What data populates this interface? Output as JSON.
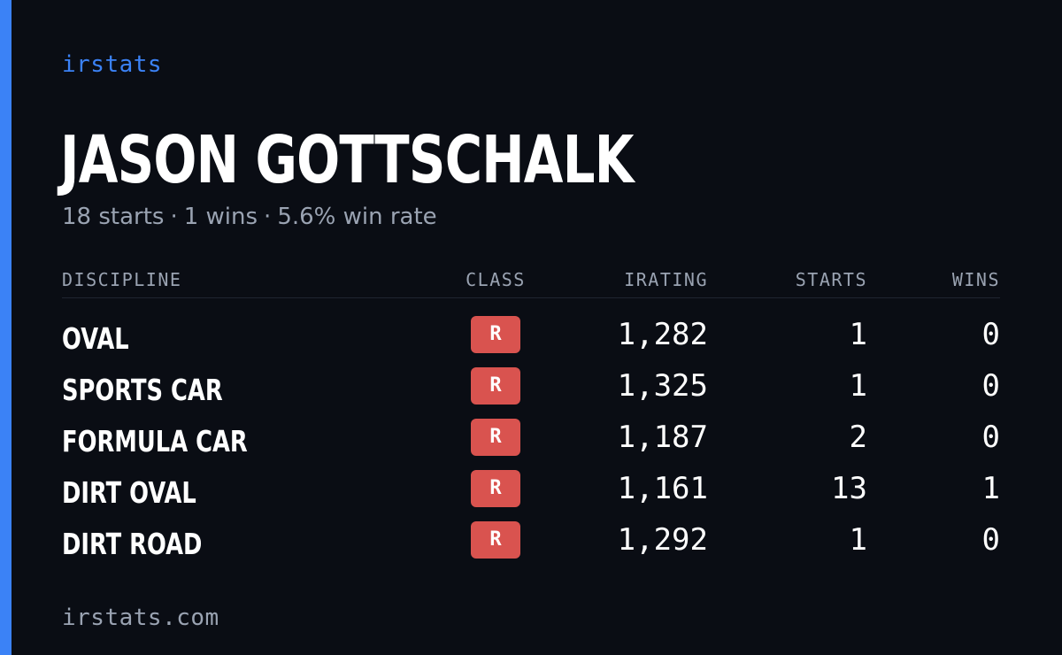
{
  "brand": "irstats",
  "player": {
    "name": "JASON GOTTSCHALK"
  },
  "summary": {
    "starts": "18 starts",
    "wins": "1 wins",
    "win_rate": "5.6% win rate",
    "separator": "·"
  },
  "table": {
    "headers": {
      "discipline": "DISCIPLINE",
      "class": "CLASS",
      "irating": "IRATING",
      "starts": "STARTS",
      "wins": "WINS"
    },
    "rows": [
      {
        "discipline": "OVAL",
        "class": "R",
        "irating": "1,282",
        "starts": "1",
        "wins": "0"
      },
      {
        "discipline": "SPORTS CAR",
        "class": "R",
        "irating": "1,325",
        "starts": "1",
        "wins": "0"
      },
      {
        "discipline": "FORMULA CAR",
        "class": "R",
        "irating": "1,187",
        "starts": "2",
        "wins": "0"
      },
      {
        "discipline": "DIRT OVAL",
        "class": "R",
        "irating": "1,161",
        "starts": "13",
        "wins": "1"
      },
      {
        "discipline": "DIRT ROAD",
        "class": "R",
        "irating": "1,292",
        "starts": "1",
        "wins": "0"
      }
    ]
  },
  "footer": {
    "url": "irstats.com"
  },
  "colors": {
    "background": "#0a0d14",
    "accent": "#3b82f6",
    "class_r_badge": "#d9534f",
    "muted_text": "#9aa3b2",
    "primary_text": "#ffffff"
  }
}
